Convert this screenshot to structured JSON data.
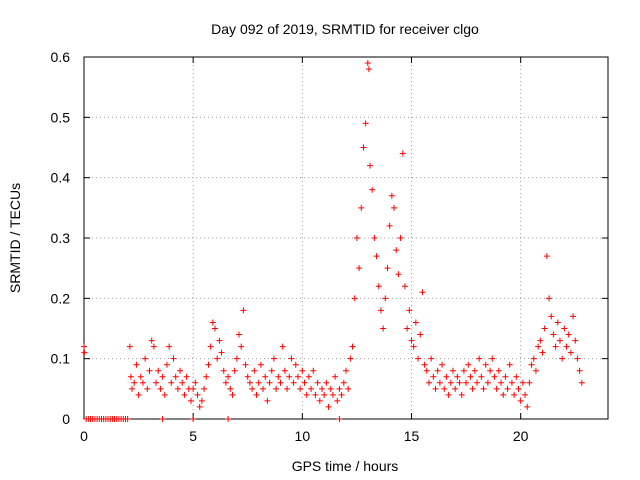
{
  "chart_data": {
    "type": "scatter",
    "title": "Day 092 of 2019, SRMTID for receiver clgo",
    "xlabel": "GPS time / hours",
    "ylabel": "SRMTID / TECUs",
    "xlim": [
      0,
      24
    ],
    "ylim": [
      0,
      0.6
    ],
    "x_ticks": [
      0,
      5,
      10,
      15,
      20
    ],
    "y_ticks": [
      0,
      0.1,
      0.2,
      0.3,
      0.4,
      0.5,
      0.6
    ],
    "y_tick_labels": [
      "0",
      "0.1",
      "0.2",
      "0.3",
      "0.4",
      "0.5",
      "0.6"
    ],
    "grid": true,
    "marker": "+",
    "color": "#ff0000",
    "series": [
      {
        "name": "SRMTID",
        "points": [
          [
            0.0,
            0.12
          ],
          [
            0.02,
            0.11
          ],
          [
            0.1,
            0.0
          ],
          [
            0.2,
            0.0
          ],
          [
            0.3,
            0.0
          ],
          [
            0.4,
            0.0
          ],
          [
            0.5,
            0.0
          ],
          [
            0.6,
            0.0
          ],
          [
            0.7,
            0.0
          ],
          [
            0.8,
            0.0
          ],
          [
            0.9,
            0.0
          ],
          [
            1.0,
            0.0
          ],
          [
            1.1,
            0.0
          ],
          [
            1.2,
            0.0
          ],
          [
            1.3,
            0.0
          ],
          [
            1.4,
            0.0
          ],
          [
            1.5,
            0.0
          ],
          [
            1.6,
            0.0
          ],
          [
            1.7,
            0.0
          ],
          [
            1.8,
            0.0
          ],
          [
            1.9,
            0.0
          ],
          [
            2.0,
            0.0
          ],
          [
            3.6,
            0.0
          ],
          [
            5.0,
            0.0
          ],
          [
            6.6,
            0.0
          ],
          [
            11.7,
            0.0
          ],
          [
            2.1,
            0.12
          ],
          [
            2.15,
            0.07
          ],
          [
            2.2,
            0.05
          ],
          [
            2.3,
            0.06
          ],
          [
            2.4,
            0.09
          ],
          [
            2.5,
            0.04
          ],
          [
            2.6,
            0.07
          ],
          [
            2.7,
            0.06
          ],
          [
            2.8,
            0.1
          ],
          [
            2.9,
            0.05
          ],
          [
            3.0,
            0.08
          ],
          [
            3.1,
            0.13
          ],
          [
            3.2,
            0.12
          ],
          [
            3.3,
            0.06
          ],
          [
            3.4,
            0.08
          ],
          [
            3.5,
            0.05
          ],
          [
            3.6,
            0.07
          ],
          [
            3.7,
            0.04
          ],
          [
            3.8,
            0.09
          ],
          [
            3.9,
            0.12
          ],
          [
            4.0,
            0.06
          ],
          [
            4.1,
            0.1
          ],
          [
            4.2,
            0.07
          ],
          [
            4.3,
            0.05
          ],
          [
            4.4,
            0.08
          ],
          [
            4.5,
            0.06
          ],
          [
            4.6,
            0.04
          ],
          [
            4.7,
            0.07
          ],
          [
            4.8,
            0.05
          ],
          [
            4.9,
            0.03
          ],
          [
            5.0,
            0.05
          ],
          [
            5.1,
            0.06
          ],
          [
            5.2,
            0.04
          ],
          [
            5.3,
            0.02
          ],
          [
            5.4,
            0.03
          ],
          [
            5.5,
            0.05
          ],
          [
            5.6,
            0.07
          ],
          [
            5.7,
            0.09
          ],
          [
            5.8,
            0.12
          ],
          [
            5.9,
            0.16
          ],
          [
            6.0,
            0.15
          ],
          [
            6.1,
            0.1
          ],
          [
            6.2,
            0.13
          ],
          [
            6.3,
            0.11
          ],
          [
            6.4,
            0.08
          ],
          [
            6.5,
            0.06
          ],
          [
            6.6,
            0.07
          ],
          [
            6.7,
            0.05
          ],
          [
            6.8,
            0.04
          ],
          [
            6.9,
            0.08
          ],
          [
            7.0,
            0.1
          ],
          [
            7.1,
            0.14
          ],
          [
            7.2,
            0.12
          ],
          [
            7.3,
            0.18
          ],
          [
            7.4,
            0.09
          ],
          [
            7.5,
            0.07
          ],
          [
            7.6,
            0.06
          ],
          [
            7.7,
            0.05
          ],
          [
            7.8,
            0.08
          ],
          [
            7.9,
            0.04
          ],
          [
            8.0,
            0.06
          ],
          [
            8.1,
            0.09
          ],
          [
            8.2,
            0.05
          ],
          [
            8.3,
            0.07
          ],
          [
            8.4,
            0.03
          ],
          [
            8.5,
            0.06
          ],
          [
            8.6,
            0.08
          ],
          [
            8.7,
            0.1
          ],
          [
            8.8,
            0.05
          ],
          [
            8.9,
            0.07
          ],
          [
            9.0,
            0.06
          ],
          [
            9.1,
            0.12
          ],
          [
            9.2,
            0.08
          ],
          [
            9.3,
            0.05
          ],
          [
            9.4,
            0.07
          ],
          [
            9.5,
            0.1
          ],
          [
            9.6,
            0.06
          ],
          [
            9.7,
            0.09
          ],
          [
            9.8,
            0.07
          ],
          [
            9.9,
            0.05
          ],
          [
            10.0,
            0.08
          ],
          [
            10.1,
            0.06
          ],
          [
            10.2,
            0.04
          ],
          [
            10.3,
            0.07
          ],
          [
            10.4,
            0.05
          ],
          [
            10.5,
            0.08
          ],
          [
            10.6,
            0.04
          ],
          [
            10.7,
            0.06
          ],
          [
            10.8,
            0.03
          ],
          [
            10.9,
            0.05
          ],
          [
            11.0,
            0.04
          ],
          [
            11.1,
            0.06
          ],
          [
            11.2,
            0.02
          ],
          [
            11.3,
            0.05
          ],
          [
            11.4,
            0.04
          ],
          [
            11.5,
            0.07
          ],
          [
            11.6,
            0.03
          ],
          [
            11.7,
            0.05
          ],
          [
            11.8,
            0.04
          ],
          [
            11.9,
            0.06
          ],
          [
            12.0,
            0.08
          ],
          [
            12.1,
            0.05
          ],
          [
            12.2,
            0.1
          ],
          [
            12.3,
            0.12
          ],
          [
            12.4,
            0.2
          ],
          [
            12.5,
            0.3
          ],
          [
            12.6,
            0.25
          ],
          [
            12.7,
            0.35
          ],
          [
            12.8,
            0.45
          ],
          [
            12.9,
            0.49
          ],
          [
            13.0,
            0.59
          ],
          [
            13.05,
            0.58
          ],
          [
            13.1,
            0.42
          ],
          [
            13.2,
            0.38
          ],
          [
            13.3,
            0.3
          ],
          [
            13.4,
            0.27
          ],
          [
            13.5,
            0.22
          ],
          [
            13.6,
            0.18
          ],
          [
            13.7,
            0.15
          ],
          [
            13.8,
            0.2
          ],
          [
            13.9,
            0.25
          ],
          [
            14.0,
            0.32
          ],
          [
            14.1,
            0.37
          ],
          [
            14.2,
            0.35
          ],
          [
            14.3,
            0.28
          ],
          [
            14.4,
            0.24
          ],
          [
            14.5,
            0.3
          ],
          [
            14.6,
            0.44
          ],
          [
            14.7,
            0.22
          ],
          [
            14.8,
            0.15
          ],
          [
            14.9,
            0.18
          ],
          [
            15.0,
            0.13
          ],
          [
            15.1,
            0.12
          ],
          [
            15.2,
            0.16
          ],
          [
            15.3,
            0.1
          ],
          [
            15.4,
            0.14
          ],
          [
            15.5,
            0.21
          ],
          [
            15.6,
            0.09
          ],
          [
            15.7,
            0.08
          ],
          [
            15.8,
            0.06
          ],
          [
            15.9,
            0.1
          ],
          [
            16.0,
            0.07
          ],
          [
            16.1,
            0.05
          ],
          [
            16.2,
            0.08
          ],
          [
            16.3,
            0.06
          ],
          [
            16.4,
            0.09
          ],
          [
            16.5,
            0.05
          ],
          [
            16.6,
            0.07
          ],
          [
            16.7,
            0.04
          ],
          [
            16.8,
            0.06
          ],
          [
            16.9,
            0.08
          ],
          [
            17.0,
            0.05
          ],
          [
            17.1,
            0.07
          ],
          [
            17.2,
            0.06
          ],
          [
            17.3,
            0.04
          ],
          [
            17.4,
            0.08
          ],
          [
            17.5,
            0.06
          ],
          [
            17.6,
            0.09
          ],
          [
            17.7,
            0.07
          ],
          [
            17.8,
            0.05
          ],
          [
            17.9,
            0.08
          ],
          [
            18.0,
            0.06
          ],
          [
            18.1,
            0.1
          ],
          [
            18.2,
            0.07
          ],
          [
            18.3,
            0.05
          ],
          [
            18.4,
            0.09
          ],
          [
            18.5,
            0.06
          ],
          [
            18.6,
            0.08
          ],
          [
            18.7,
            0.1
          ],
          [
            18.8,
            0.07
          ],
          [
            18.9,
            0.05
          ],
          [
            19.0,
            0.08
          ],
          [
            19.1,
            0.06
          ],
          [
            19.2,
            0.04
          ],
          [
            19.3,
            0.07
          ],
          [
            19.4,
            0.05
          ],
          [
            19.5,
            0.09
          ],
          [
            19.6,
            0.06
          ],
          [
            19.7,
            0.04
          ],
          [
            19.8,
            0.07
          ],
          [
            19.9,
            0.05
          ],
          [
            20.0,
            0.03
          ],
          [
            20.1,
            0.06
          ],
          [
            20.2,
            0.04
          ],
          [
            20.3,
            0.02
          ],
          [
            20.4,
            0.06
          ],
          [
            20.5,
            0.09
          ],
          [
            20.6,
            0.1
          ],
          [
            20.7,
            0.08
          ],
          [
            20.8,
            0.12
          ],
          [
            20.9,
            0.13
          ],
          [
            21.0,
            0.11
          ],
          [
            21.1,
            0.15
          ],
          [
            21.2,
            0.27
          ],
          [
            21.3,
            0.2
          ],
          [
            21.4,
            0.17
          ],
          [
            21.5,
            0.14
          ],
          [
            21.6,
            0.12
          ],
          [
            21.7,
            0.16
          ],
          [
            21.8,
            0.13
          ],
          [
            21.9,
            0.1
          ],
          [
            22.0,
            0.15
          ],
          [
            22.1,
            0.12
          ],
          [
            22.2,
            0.14
          ],
          [
            22.3,
            0.11
          ],
          [
            22.4,
            0.17
          ],
          [
            22.5,
            0.13
          ],
          [
            22.6,
            0.1
          ],
          [
            22.7,
            0.08
          ],
          [
            22.8,
            0.06
          ]
        ]
      }
    ]
  }
}
